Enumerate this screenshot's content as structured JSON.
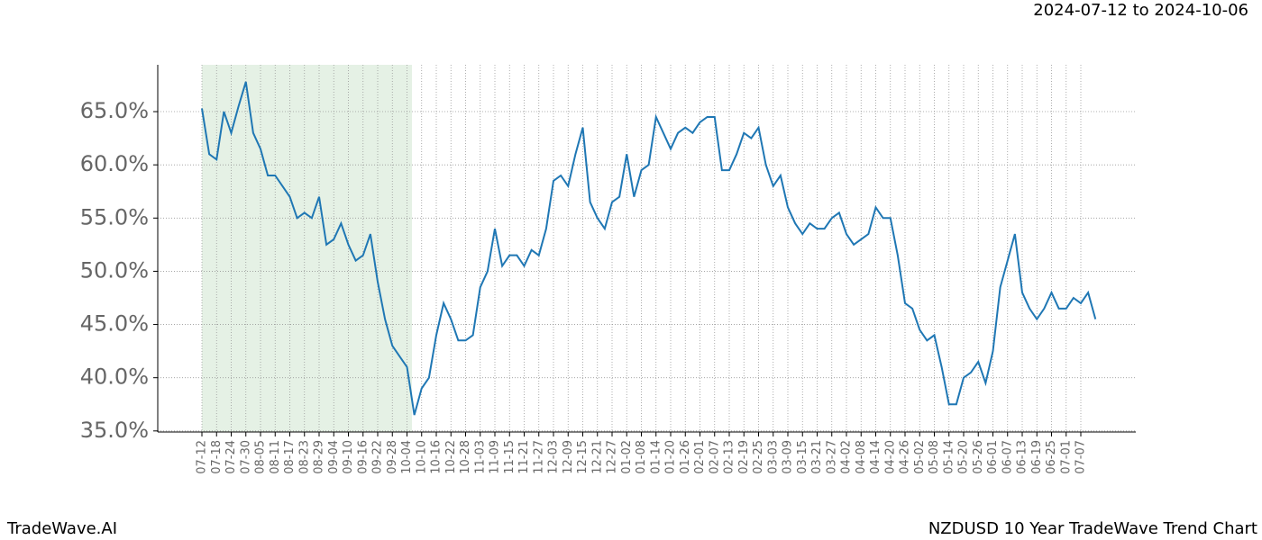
{
  "chart_data": {
    "type": "line",
    "title": "NZDUSD 10 Year TradeWave Trend Chart",
    "subtitle": "2024-07-12 to 2024-10-06",
    "brand": "TradeWave.AI",
    "color": "#1f77b4",
    "grid": true,
    "ylim": [
      34.9,
      69.4
    ],
    "yticks": [
      {
        "value": 35,
        "label": "35.0%"
      },
      {
        "value": 40,
        "label": "40.0%"
      },
      {
        "value": 45,
        "label": "45.0%"
      },
      {
        "value": 50,
        "label": "50.0%"
      },
      {
        "value": 55,
        "label": "55.0%"
      },
      {
        "value": 60,
        "label": "60.0%"
      },
      {
        "value": 65,
        "label": "65.0%"
      }
    ],
    "categories": [
      "07-12",
      null,
      "07-18",
      null,
      "07-24",
      null,
      "07-30",
      null,
      "08-05",
      null,
      "08-11",
      null,
      "08-17",
      null,
      "08-23",
      null,
      "08-29",
      null,
      "09-04",
      null,
      "09-10",
      null,
      "09-16",
      null,
      "09-22",
      null,
      "09-28",
      null,
      "10-04",
      null,
      "10-10",
      null,
      "10-16",
      null,
      "10-22",
      null,
      "10-28",
      null,
      "11-03",
      null,
      "11-09",
      null,
      "11-15",
      null,
      "11-21",
      null,
      "11-27",
      null,
      "12-03",
      null,
      "12-09",
      null,
      "12-15",
      null,
      "12-21",
      null,
      "12-27",
      null,
      "01-02",
      null,
      "01-08",
      null,
      "01-14",
      null,
      "01-20",
      null,
      "01-26",
      null,
      "02-01",
      null,
      "02-07",
      null,
      "02-13",
      null,
      "02-19",
      null,
      "02-25",
      null,
      "03-03",
      null,
      "03-09",
      null,
      "03-15",
      null,
      "03-21",
      null,
      "03-27",
      null,
      "04-02",
      null,
      "04-08",
      null,
      "04-14",
      null,
      "04-20",
      null,
      "04-26",
      null,
      "05-02",
      null,
      "05-08",
      null,
      "05-14",
      null,
      "05-20",
      null,
      "05-26",
      null,
      "06-01",
      null,
      "06-07",
      null,
      "06-13",
      null,
      "06-19",
      null,
      "06-25",
      null,
      "07-01",
      null,
      "07-07",
      null,
      null
    ],
    "values": [
      65.3,
      61,
      60.5,
      65,
      63,
      65.5,
      67.8,
      63,
      61.5,
      59,
      59,
      58,
      57,
      55,
      55.5,
      55,
      57,
      52.5,
      53,
      54.5,
      52.5,
      51,
      51.5,
      53.5,
      49,
      45.5,
      43,
      42,
      41,
      36.5,
      39,
      40,
      44,
      47,
      45.5,
      43.5,
      43.5,
      44,
      48.5,
      50,
      54,
      50.5,
      51.5,
      51.5,
      50.5,
      52,
      51.5,
      54,
      58.5,
      59,
      58,
      61,
      63.5,
      56.5,
      55,
      54,
      56.5,
      57,
      61,
      57,
      59.5,
      60,
      64.5,
      63,
      61.5,
      63,
      63.5,
      63,
      64,
      64.5,
      64.5,
      59.5,
      59.5,
      61,
      63,
      62.5,
      63.5,
      60,
      58,
      59,
      56,
      54.5,
      53.5,
      54.5,
      54,
      54,
      55,
      55.5,
      53.5,
      52.5,
      53,
      53.5,
      56,
      55,
      55,
      51.5,
      47,
      46.5,
      44.5,
      43.5,
      44,
      41,
      37.5,
      37.5,
      40,
      40.5,
      41.5,
      39.5,
      42.5,
      48.5,
      51,
      53.5,
      48,
      46.5,
      45.5,
      46.5,
      48,
      46.5,
      46.5,
      47.5,
      47,
      48,
      45.5
    ]
  }
}
